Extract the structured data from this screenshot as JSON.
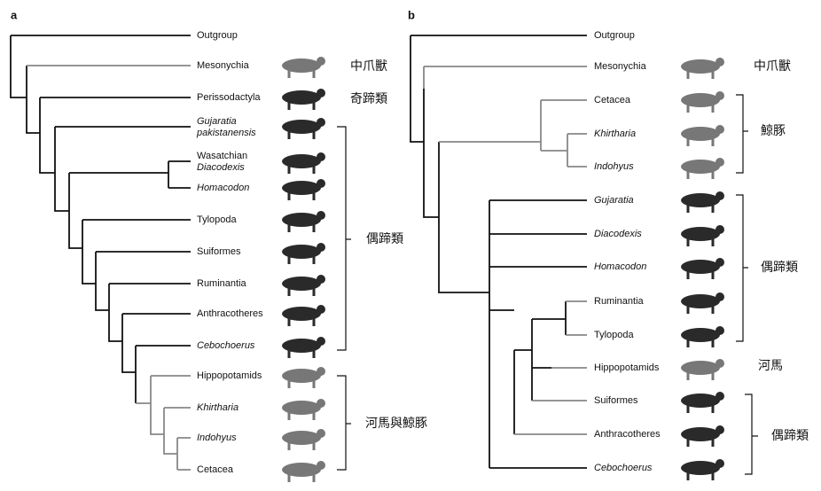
{
  "panels": [
    {
      "label": "a",
      "taxa": [
        [
          "Outgroup"
        ],
        [
          "Mesonychia"
        ],
        [
          "Perissodactyla"
        ],
        [
          "Gujaratia",
          "pakistanensis"
        ],
        [
          "Wasatchian",
          "Diacodexis"
        ],
        [
          "Homacodon"
        ],
        [
          "Tylopoda"
        ],
        [
          "Suiformes"
        ],
        [
          "Ruminantia"
        ],
        [
          "Anthracotheres"
        ],
        [
          "Cebochoerus"
        ],
        [
          "Hippopotamids"
        ],
        [
          "Khirtharia"
        ],
        [
          "Indohyus"
        ],
        [
          "Cetacea"
        ]
      ],
      "groups": [
        "中爪獸",
        "奇蹄類",
        "偶蹄類",
        "河馬與鯨豚"
      ]
    },
    {
      "label": "b",
      "taxa": [
        [
          "Outgroup"
        ],
        [
          "Mesonychia"
        ],
        [
          "Cetacea"
        ],
        [
          "Khirtharia"
        ],
        [
          "Indohyus"
        ],
        [
          "Gujaratia"
        ],
        [
          "Diacodexis"
        ],
        [
          "Homacodon"
        ],
        [
          "Ruminantia"
        ],
        [
          "Tylopoda"
        ],
        [
          "Hippopotamids"
        ],
        [
          "Suiformes"
        ],
        [
          "Anthracotheres"
        ],
        [
          "Cebochoerus"
        ]
      ],
      "groups": [
        "中爪獸",
        "鯨豚",
        "偶蹄類",
        "河馬",
        "偶蹄類"
      ]
    }
  ]
}
